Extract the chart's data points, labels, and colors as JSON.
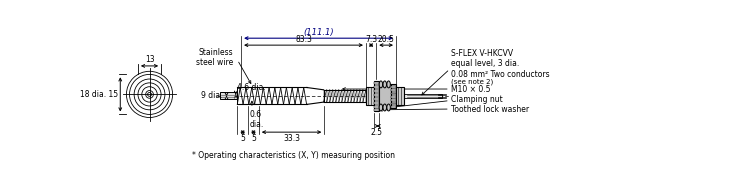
{
  "bg_color": "#ffffff",
  "line_color": "#000000",
  "dim_color": "#000080",
  "fig_width": 7.5,
  "fig_height": 1.9,
  "dpi": 100,
  "labels": {
    "stainless_wire": "Stainless\nsteel wire",
    "9dia": "9 dia.",
    "46dia": "4.6 dia.",
    "06dia": "0.6\ndia.",
    "dim_5a": "5",
    "dim_5b": "5",
    "dim_333": "33.3",
    "dim_83": "83.3",
    "dim_73": "7.3",
    "dim_205": "20.5",
    "dim_1111": "(111.1)",
    "dim_25": "2.5",
    "dim_13": "13",
    "dim_18": "18 dia. 15",
    "sflex": "S-FLEX V-HKCVV\nequal level, 3 dia.\n0.08 mm² Two conductors",
    "seenote2": "(see note 2)",
    "m10": "M10 × 0.5",
    "clamping": "Clamping nut",
    "toothed": "Toothed lock washer",
    "operating": "* Operating characteristics (X, Y) measuring position"
  }
}
